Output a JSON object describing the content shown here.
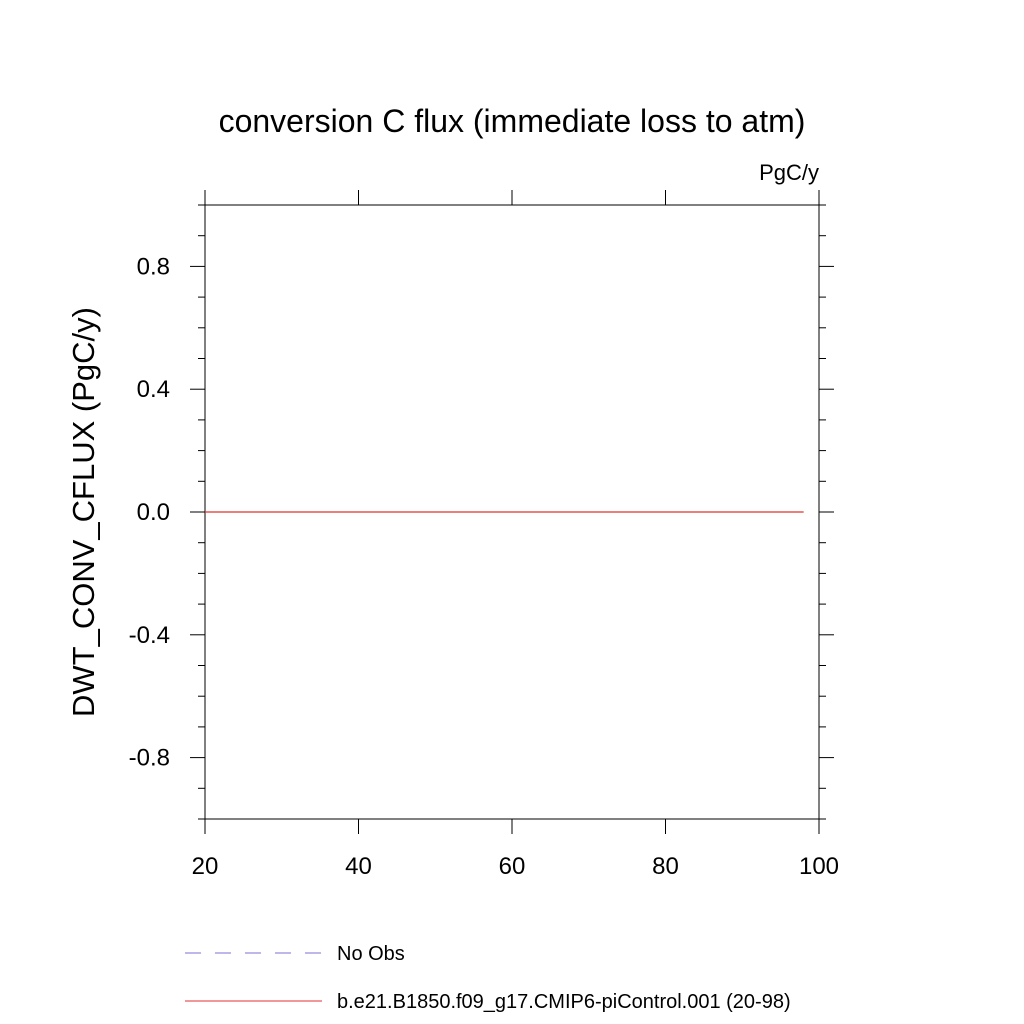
{
  "chart_data": {
    "type": "line",
    "title": "conversion C flux (immediate loss to atm)",
    "units_label": "PgC/y",
    "ylabel": "DWT_CONV_CFLUX  (PgC/y)",
    "xlabel": "",
    "xlim": [
      20,
      100
    ],
    "ylim": [
      -1.0,
      1.0
    ],
    "x_ticks": [
      20,
      40,
      60,
      80,
      100
    ],
    "x_tick_labels": [
      "20",
      "40",
      "60",
      "80",
      "100"
    ],
    "x_minor_step": 20,
    "y_ticks": [
      -0.8,
      -0.4,
      0.0,
      0.4,
      0.8
    ],
    "y_tick_labels": [
      "-0.8",
      "-0.4",
      "0.0",
      "0.4",
      "0.8"
    ],
    "y_minor_step": 0.1,
    "grid": false,
    "legend_position": "bottom",
    "series": [
      {
        "name": "No Obs",
        "color": "#7b6fd6",
        "style": "dashed",
        "x": [],
        "y": []
      },
      {
        "name": "b.e21.B1850.f09_g17.CMIP6-piControl.001 (20-98)",
        "color": "#e03030",
        "style": "solid",
        "x": [
          20,
          98
        ],
        "y": [
          0.0,
          0.0
        ]
      }
    ]
  }
}
